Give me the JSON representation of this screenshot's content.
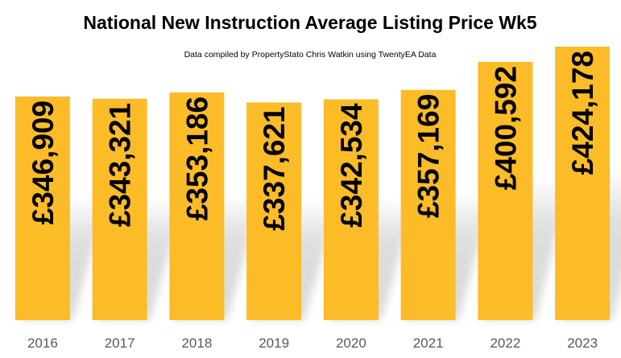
{
  "chart_data": {
    "type": "bar",
    "title": "National New Instruction Average Listing Price Wk5",
    "subtitle": "Data compiled by PropertyStato Chris Watkin using TwentyEA Data",
    "categories": [
      "2016",
      "2017",
      "2018",
      "2019",
      "2020",
      "2021",
      "2022",
      "2023"
    ],
    "values": [
      346909,
      343321,
      353186,
      337621,
      342534,
      357169,
      400592,
      424178
    ],
    "data_labels": [
      "£346,909",
      "£343,321",
      "£353,186",
      "£337,621",
      "£342,534",
      "£357,169",
      "£400,592",
      "£424,178"
    ],
    "xlabel": "",
    "ylabel": "",
    "ylim": [
      0,
      424178
    ],
    "grid": false,
    "legend": "none",
    "colors": {
      "bar": "#FBBC28",
      "shadow": "#c8c8c8",
      "label": "#000000",
      "tick": "#595959"
    }
  }
}
